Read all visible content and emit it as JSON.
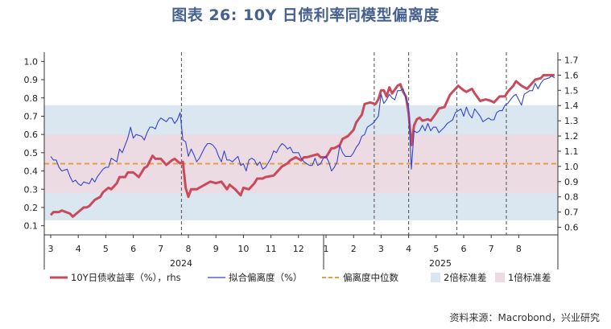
{
  "title": "图表 26: 10Y 日债利率同模型偏离度",
  "source": "资料来源：Macrobond，兴业研究",
  "colors": {
    "jgb": "#c94a5c",
    "fit": "#3344cc",
    "median": "#e0a04a",
    "band2": "#dae6f0",
    "band1": "#ecdbe3",
    "divider": "#666666"
  },
  "chart_data": {
    "type": "line",
    "left_axis": {
      "min": 0.05,
      "max": 1.05,
      "ticks": [
        "1.0",
        "0.9",
        "0.8",
        "0.7",
        "0.6",
        "0.5",
        "0.4",
        "0.3",
        "0.2",
        "0.1"
      ]
    },
    "right_axis": {
      "min": 0.55,
      "max": 1.75,
      "ticks": [
        "1.7",
        "1.6",
        "1.5",
        "1.4",
        "1.3",
        "1.2",
        "1.1",
        "1.0",
        "0.9",
        "0.8",
        "0.7",
        "0.6"
      ]
    },
    "month_labels": [
      "3",
      "4",
      "5",
      "6",
      "7",
      "8",
      "9",
      "10",
      "11",
      "12",
      "1",
      "2",
      "3",
      "4",
      "5",
      "6",
      "7",
      "8"
    ],
    "year_labels": [
      "2024",
      "2025"
    ],
    "bands": {
      "two_sd": [
        0.13,
        0.76
      ],
      "one_sd": [
        0.28,
        0.6
      ]
    },
    "median": 0.44,
    "vertical_dividers_month_pos": [
      4.75,
      11.75,
      13.0,
      14.75,
      16.55
    ],
    "series": [
      {
        "name": "10Y日债收益率（%），rhs",
        "axis": "right",
        "points": [
          [
            0.0,
            0.68
          ],
          [
            0.1,
            0.7
          ],
          [
            0.3,
            0.7
          ],
          [
            0.4,
            0.71
          ],
          [
            0.7,
            0.69
          ],
          [
            0.8,
            0.67
          ],
          [
            1.0,
            0.7
          ],
          [
            1.2,
            0.73
          ],
          [
            1.3,
            0.73
          ],
          [
            1.4,
            0.74
          ],
          [
            1.6,
            0.78
          ],
          [
            1.8,
            0.8
          ],
          [
            1.9,
            0.83
          ],
          [
            2.1,
            0.86
          ],
          [
            2.2,
            0.85
          ],
          [
            2.4,
            0.89
          ],
          [
            2.5,
            0.93
          ],
          [
            2.7,
            0.93
          ],
          [
            2.8,
            0.96
          ],
          [
            3.0,
            0.96
          ],
          [
            3.2,
            0.93
          ],
          [
            3.4,
            0.99
          ],
          [
            3.5,
            1.0
          ],
          [
            3.7,
            1.07
          ],
          [
            3.8,
            1.05
          ],
          [
            4.0,
            1.05
          ],
          [
            4.2,
            1.01
          ],
          [
            4.4,
            1.04
          ],
          [
            4.5,
            1.05
          ],
          [
            4.7,
            1.02
          ],
          [
            4.8,
            1.03
          ],
          [
            4.9,
            0.86
          ],
          [
            5.0,
            0.8
          ],
          [
            5.1,
            0.85
          ],
          [
            5.3,
            0.85
          ],
          [
            5.5,
            0.87
          ],
          [
            5.6,
            0.88
          ],
          [
            5.8,
            0.9
          ],
          [
            6.0,
            0.89
          ],
          [
            6.2,
            0.9
          ],
          [
            6.4,
            0.85
          ],
          [
            6.5,
            0.88
          ],
          [
            6.7,
            0.85
          ],
          [
            6.9,
            0.81
          ],
          [
            7.0,
            0.86
          ],
          [
            7.2,
            0.85
          ],
          [
            7.4,
            0.89
          ],
          [
            7.5,
            0.92
          ],
          [
            7.7,
            0.92
          ],
          [
            7.8,
            0.93
          ],
          [
            8.1,
            0.94
          ],
          [
            8.3,
            0.98
          ],
          [
            8.4,
            1.0
          ],
          [
            8.6,
            1.02
          ],
          [
            8.7,
            1.04
          ],
          [
            8.9,
            1.06
          ],
          [
            9.1,
            1.04
          ],
          [
            9.2,
            1.06
          ],
          [
            9.3,
            1.06
          ],
          [
            9.5,
            1.07
          ],
          [
            9.7,
            1.08
          ],
          [
            9.8,
            1.06
          ],
          [
            10.0,
            1.06
          ],
          [
            10.2,
            1.12
          ],
          [
            10.3,
            1.12
          ],
          [
            10.5,
            1.14
          ],
          [
            10.6,
            1.18
          ],
          [
            10.8,
            1.2
          ],
          [
            11.0,
            1.24
          ],
          [
            11.1,
            1.29
          ],
          [
            11.3,
            1.34
          ],
          [
            11.4,
            1.41
          ],
          [
            11.6,
            1.42
          ],
          [
            11.8,
            1.41
          ],
          [
            11.9,
            1.44
          ],
          [
            12.0,
            1.5
          ],
          [
            12.1,
            1.5
          ],
          [
            12.2,
            1.46
          ],
          [
            12.3,
            1.52
          ],
          [
            12.4,
            1.48
          ],
          [
            12.6,
            1.53
          ],
          [
            12.7,
            1.54
          ],
          [
            12.8,
            1.49
          ],
          [
            12.9,
            1.46
          ],
          [
            13.0,
            1.35
          ],
          [
            13.1,
            1.14
          ],
          [
            13.2,
            1.27
          ],
          [
            13.3,
            1.31
          ],
          [
            13.4,
            1.32
          ],
          [
            13.5,
            1.3
          ],
          [
            13.7,
            1.31
          ],
          [
            13.8,
            1.3
          ],
          [
            14.0,
            1.35
          ],
          [
            14.1,
            1.38
          ],
          [
            14.3,
            1.39
          ],
          [
            14.5,
            1.47
          ],
          [
            14.6,
            1.49
          ],
          [
            14.8,
            1.53
          ],
          [
            15.0,
            1.5
          ],
          [
            15.1,
            1.49
          ],
          [
            15.3,
            1.51
          ],
          [
            15.4,
            1.48
          ],
          [
            15.6,
            1.43
          ],
          [
            15.8,
            1.44
          ],
          [
            16.0,
            1.43
          ],
          [
            16.1,
            1.42
          ],
          [
            16.3,
            1.46
          ],
          [
            16.5,
            1.46
          ],
          [
            16.6,
            1.49
          ],
          [
            16.8,
            1.53
          ],
          [
            16.9,
            1.56
          ],
          [
            17.1,
            1.53
          ],
          [
            17.3,
            1.51
          ],
          [
            17.4,
            1.53
          ],
          [
            17.6,
            1.57
          ],
          [
            17.8,
            1.58
          ],
          [
            17.9,
            1.6
          ],
          [
            18.1,
            1.6
          ],
          [
            18.3,
            1.6
          ]
        ]
      },
      {
        "name": "拟合偏离度（%）",
        "axis": "left",
        "points": [
          [
            0.0,
            0.48
          ],
          [
            0.1,
            0.46
          ],
          [
            0.2,
            0.46
          ],
          [
            0.3,
            0.42
          ],
          [
            0.4,
            0.4
          ],
          [
            0.6,
            0.41
          ],
          [
            0.7,
            0.37
          ],
          [
            0.8,
            0.34
          ],
          [
            0.9,
            0.35
          ],
          [
            1.0,
            0.33
          ],
          [
            1.1,
            0.32
          ],
          [
            1.2,
            0.34
          ],
          [
            1.4,
            0.33
          ],
          [
            1.5,
            0.36
          ],
          [
            1.6,
            0.34
          ],
          [
            1.7,
            0.37
          ],
          [
            1.8,
            0.39
          ],
          [
            1.9,
            0.41
          ],
          [
            2.0,
            0.42
          ],
          [
            2.1,
            0.42
          ],
          [
            2.2,
            0.47
          ],
          [
            2.4,
            0.45
          ],
          [
            2.5,
            0.52
          ],
          [
            2.6,
            0.5
          ],
          [
            2.7,
            0.54
          ],
          [
            2.8,
            0.58
          ],
          [
            2.9,
            0.64
          ],
          [
            3.0,
            0.58
          ],
          [
            3.1,
            0.6
          ],
          [
            3.3,
            0.59
          ],
          [
            3.4,
            0.57
          ],
          [
            3.5,
            0.61
          ],
          [
            3.6,
            0.64
          ],
          [
            3.7,
            0.64
          ],
          [
            3.8,
            0.63
          ],
          [
            3.9,
            0.67
          ],
          [
            4.0,
            0.69
          ],
          [
            4.1,
            0.68
          ],
          [
            4.2,
            0.67
          ],
          [
            4.3,
            0.69
          ],
          [
            4.4,
            0.69
          ],
          [
            4.5,
            0.66
          ],
          [
            4.6,
            0.68
          ],
          [
            4.7,
            0.72
          ],
          [
            4.8,
            0.57
          ],
          [
            4.9,
            0.56
          ],
          [
            5.0,
            0.48
          ],
          [
            5.1,
            0.52
          ],
          [
            5.2,
            0.49
          ],
          [
            5.3,
            0.45
          ],
          [
            5.4,
            0.47
          ],
          [
            5.6,
            0.53
          ],
          [
            5.7,
            0.55
          ],
          [
            5.8,
            0.55
          ],
          [
            5.9,
            0.54
          ],
          [
            6.0,
            0.52
          ],
          [
            6.1,
            0.48
          ],
          [
            6.2,
            0.45
          ],
          [
            6.3,
            0.51
          ],
          [
            6.4,
            0.46
          ],
          [
            6.5,
            0.46
          ],
          [
            6.6,
            0.45
          ],
          [
            6.8,
            0.48
          ],
          [
            6.9,
            0.43
          ],
          [
            7.0,
            0.44
          ],
          [
            7.1,
            0.4
          ],
          [
            7.2,
            0.46
          ],
          [
            7.3,
            0.47
          ],
          [
            7.4,
            0.46
          ],
          [
            7.5,
            0.43
          ],
          [
            7.6,
            0.45
          ],
          [
            7.7,
            0.41
          ],
          [
            7.8,
            0.42
          ],
          [
            8.0,
            0.47
          ],
          [
            8.1,
            0.51
          ],
          [
            8.2,
            0.5
          ],
          [
            8.3,
            0.53
          ],
          [
            8.4,
            0.55
          ],
          [
            8.5,
            0.54
          ],
          [
            8.6,
            0.52
          ],
          [
            8.7,
            0.53
          ],
          [
            8.8,
            0.5
          ],
          [
            9.0,
            0.5
          ],
          [
            9.1,
            0.47
          ],
          [
            9.2,
            0.45
          ],
          [
            9.3,
            0.44
          ],
          [
            9.4,
            0.43
          ],
          [
            9.5,
            0.43
          ],
          [
            9.6,
            0.47
          ],
          [
            9.7,
            0.43
          ],
          [
            9.8,
            0.44
          ],
          [
            9.9,
            0.47
          ],
          [
            10.0,
            0.48
          ],
          [
            10.1,
            0.45
          ],
          [
            10.2,
            0.4
          ],
          [
            10.3,
            0.42
          ],
          [
            10.4,
            0.45
          ],
          [
            10.5,
            0.54
          ],
          [
            10.6,
            0.5
          ],
          [
            10.7,
            0.48
          ],
          [
            10.9,
            0.48
          ],
          [
            11.0,
            0.5
          ],
          [
            11.1,
            0.53
          ],
          [
            11.2,
            0.55
          ],
          [
            11.3,
            0.59
          ],
          [
            11.4,
            0.6
          ],
          [
            11.5,
            0.64
          ],
          [
            11.6,
            0.65
          ],
          [
            11.7,
            0.66
          ],
          [
            11.8,
            0.68
          ],
          [
            11.9,
            0.7
          ],
          [
            12.0,
            0.82
          ],
          [
            12.1,
            0.77
          ],
          [
            12.2,
            0.79
          ],
          [
            12.3,
            0.82
          ],
          [
            12.4,
            0.8
          ],
          [
            12.5,
            0.79
          ],
          [
            12.6,
            0.84
          ],
          [
            12.7,
            0.84
          ],
          [
            12.8,
            0.85
          ],
          [
            12.9,
            0.8
          ],
          [
            13.0,
            0.75
          ],
          [
            13.1,
            0.41
          ],
          [
            13.2,
            0.62
          ],
          [
            13.3,
            0.61
          ],
          [
            13.4,
            0.62
          ],
          [
            13.5,
            0.65
          ],
          [
            13.6,
            0.62
          ],
          [
            13.7,
            0.66
          ],
          [
            13.8,
            0.62
          ],
          [
            13.9,
            0.64
          ],
          [
            14.0,
            0.64
          ],
          [
            14.1,
            0.61
          ],
          [
            14.3,
            0.64
          ],
          [
            14.4,
            0.66
          ],
          [
            14.5,
            0.67
          ],
          [
            14.6,
            0.68
          ],
          [
            14.7,
            0.72
          ],
          [
            14.9,
            0.74
          ],
          [
            15.0,
            0.7
          ],
          [
            15.1,
            0.75
          ],
          [
            15.2,
            0.71
          ],
          [
            15.3,
            0.69
          ],
          [
            15.4,
            0.74
          ],
          [
            15.5,
            0.72
          ],
          [
            15.6,
            0.7
          ],
          [
            15.7,
            0.67
          ],
          [
            15.9,
            0.69
          ],
          [
            16.0,
            0.68
          ],
          [
            16.1,
            0.68
          ],
          [
            16.2,
            0.72
          ],
          [
            16.3,
            0.73
          ],
          [
            16.4,
            0.73
          ],
          [
            16.5,
            0.76
          ],
          [
            16.6,
            0.77
          ],
          [
            16.7,
            0.79
          ],
          [
            16.8,
            0.81
          ],
          [
            16.9,
            0.82
          ],
          [
            17.1,
            0.76
          ],
          [
            17.2,
            0.82
          ],
          [
            17.3,
            0.83
          ],
          [
            17.4,
            0.84
          ],
          [
            17.5,
            0.84
          ],
          [
            17.6,
            0.88
          ],
          [
            17.7,
            0.85
          ],
          [
            17.8,
            0.88
          ],
          [
            17.9,
            0.9
          ],
          [
            18.1,
            0.91
          ],
          [
            18.2,
            0.92
          ],
          [
            18.3,
            0.91
          ]
        ]
      }
    ],
    "legend": [
      {
        "label": "10Y日债收益率（%），rhs",
        "kind": "line-thick"
      },
      {
        "label": "拟合偏离度（%）",
        "kind": "line-thin"
      },
      {
        "label": "偏离度中位数",
        "kind": "dash"
      },
      {
        "label": "2倍标准差",
        "kind": "box-blue"
      },
      {
        "label": "1倍标准差",
        "kind": "box-pink"
      }
    ]
  }
}
